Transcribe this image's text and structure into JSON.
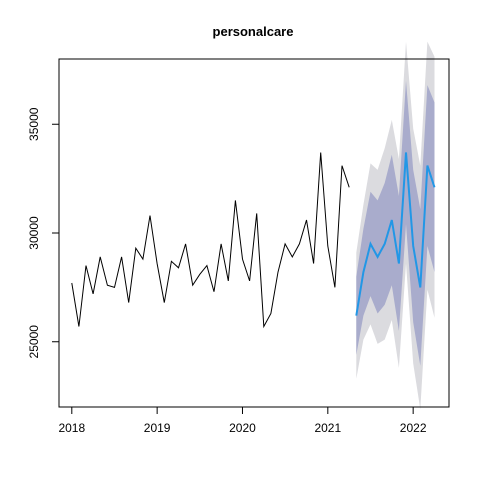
{
  "chart_data": {
    "type": "line",
    "title": "personalcare",
    "xlabel": "",
    "ylabel": "",
    "xlim": [
      2017.85,
      2022.42
    ],
    "ylim": [
      22000,
      38000
    ],
    "x_ticks": [
      2018,
      2019,
      2020,
      2021,
      2022
    ],
    "x_tick_labels": [
      "2018",
      "2019",
      "2020",
      "2021",
      "2022"
    ],
    "y_ticks": [
      25000,
      30000,
      35000
    ],
    "y_tick_labels": [
      "25000",
      "30000",
      "35000"
    ],
    "grid": false,
    "legend": "none",
    "colors": {
      "history": "#000000",
      "forecast": "#2297E6",
      "band_inner": "#A9ACCC",
      "band_outer": "#DBDBDF"
    },
    "history": {
      "start": [
        2018,
        1
      ],
      "frequency": 12,
      "values": [
        27700,
        25700,
        28500,
        27200,
        28900,
        27600,
        27500,
        28900,
        26800,
        29300,
        28800,
        30800,
        28600,
        26800,
        28700,
        28400,
        29500,
        27600,
        28100,
        28500,
        27300,
        29500,
        27800,
        31500,
        28800,
        27800,
        30900,
        25700,
        26300,
        28200,
        29500,
        28900,
        29500,
        30600,
        28600,
        33700,
        29400,
        27500,
        33100,
        32100
      ]
    },
    "forecast": {
      "start": [
        2021,
        5
      ],
      "frequency": 12,
      "mean": [
        26200,
        28200,
        29500,
        28900,
        29500,
        30600,
        28600,
        33700,
        29400,
        27500,
        33100,
        32100
      ],
      "lower_80": [
        24400,
        26200,
        27100,
        26300,
        26700,
        27600,
        25500,
        30400,
        25900,
        23900,
        29400,
        28200
      ],
      "upper_80": [
        28000,
        30200,
        31900,
        31500,
        32300,
        33600,
        31700,
        37000,
        32900,
        31100,
        36800,
        36000
      ],
      "lower_95": [
        23300,
        25100,
        25800,
        24900,
        25100,
        26000,
        23800,
        28600,
        24000,
        21900,
        27400,
        26100
      ],
      "upper_95": [
        29100,
        31300,
        33200,
        32900,
        33900,
        35200,
        33400,
        38800,
        34800,
        33100,
        38800,
        38100
      ]
    }
  }
}
